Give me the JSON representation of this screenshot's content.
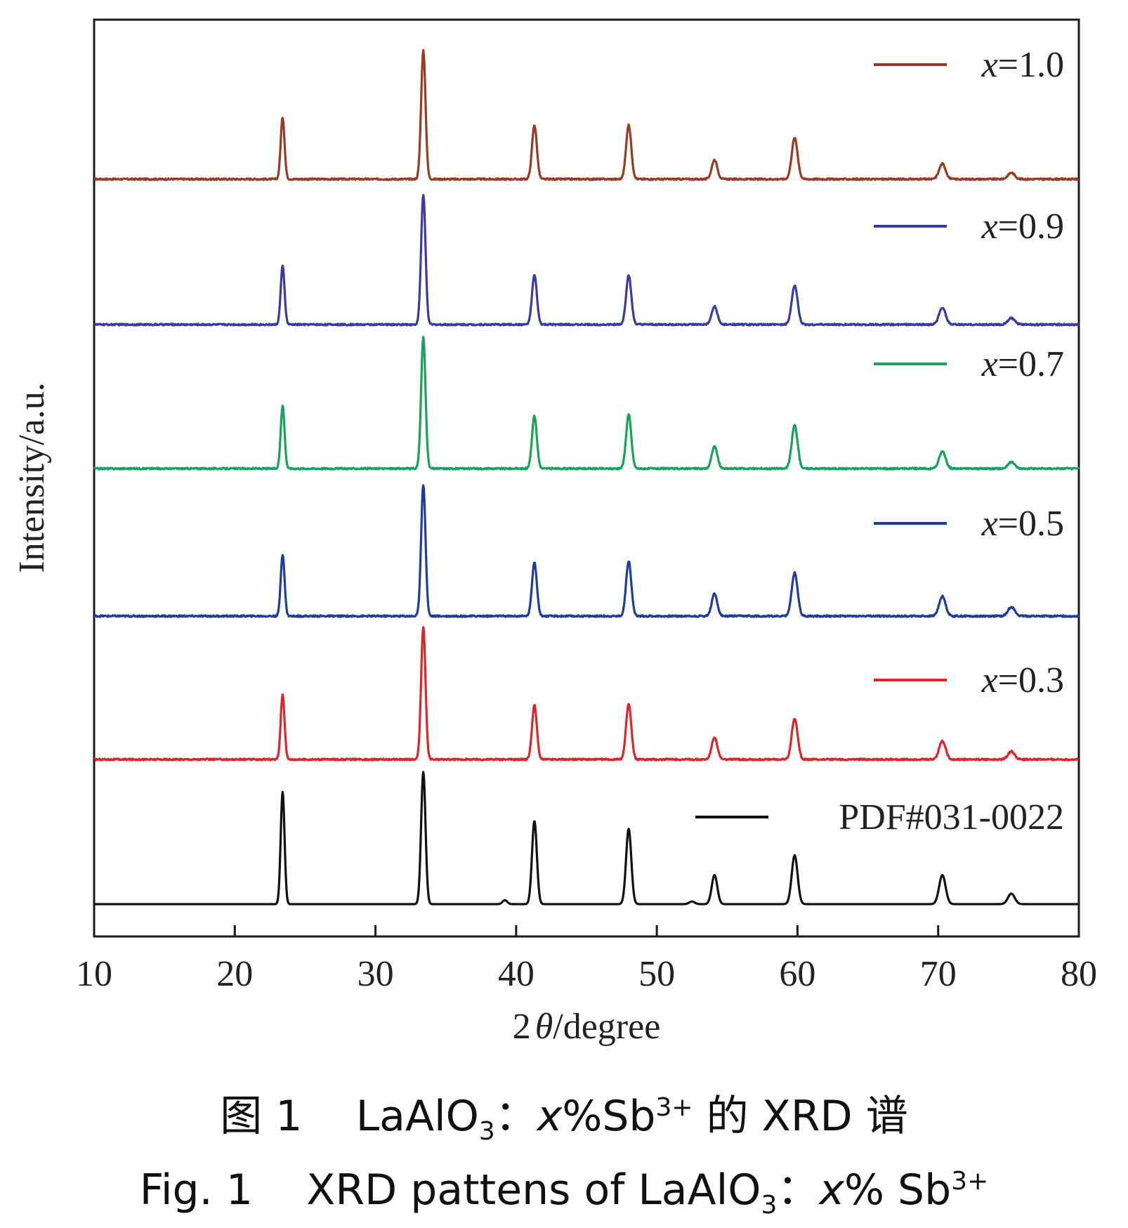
{
  "chart_data": {
    "type": "line",
    "title": "",
    "xlabel_prefix": "2",
    "xlabel_symbol": "θ",
    "xlabel_suffix": "/degree",
    "ylabel": "Intensity/a.u.",
    "xlim": [
      10,
      80
    ],
    "xticks": [
      10,
      20,
      30,
      40,
      50,
      60,
      70,
      80
    ],
    "yticks_shown": false,
    "legend_placement": "right, beside each curve",
    "series": [
      {
        "name": "x=1.0",
        "legend_var": "x",
        "legend_value": "=1.0",
        "color": "#9b3a22",
        "peaks": [
          [
            23.4,
            0.48
          ],
          [
            33.4,
            1.0
          ],
          [
            41.3,
            0.42
          ],
          [
            48.0,
            0.42
          ],
          [
            54.1,
            0.15
          ],
          [
            59.8,
            0.32
          ],
          [
            70.3,
            0.12
          ],
          [
            75.2,
            0.05
          ]
        ]
      },
      {
        "name": "x=0.9",
        "legend_var": "x",
        "legend_value": "=0.9",
        "color": "#3a3aa6",
        "peaks": [
          [
            23.4,
            0.45
          ],
          [
            33.4,
            1.0
          ],
          [
            41.3,
            0.38
          ],
          [
            48.0,
            0.38
          ],
          [
            54.1,
            0.14
          ],
          [
            59.8,
            0.3
          ],
          [
            70.3,
            0.13
          ],
          [
            75.2,
            0.05
          ]
        ]
      },
      {
        "name": "x=0.7",
        "legend_var": "x",
        "legend_value": "=0.7",
        "color": "#16a35a",
        "peaks": [
          [
            23.4,
            0.48
          ],
          [
            33.4,
            1.0
          ],
          [
            41.3,
            0.4
          ],
          [
            48.0,
            0.41
          ],
          [
            54.1,
            0.17
          ],
          [
            59.8,
            0.33
          ],
          [
            70.3,
            0.13
          ],
          [
            75.2,
            0.05
          ]
        ]
      },
      {
        "name": "x=0.5",
        "legend_var": "x",
        "legend_value": "=0.5",
        "color": "#1f3c9e",
        "peaks": [
          [
            23.4,
            0.47
          ],
          [
            33.4,
            1.0
          ],
          [
            41.3,
            0.41
          ],
          [
            48.0,
            0.42
          ],
          [
            54.1,
            0.17
          ],
          [
            59.8,
            0.33
          ],
          [
            70.3,
            0.15
          ],
          [
            75.2,
            0.07
          ]
        ]
      },
      {
        "name": "x=0.3",
        "legend_var": "x",
        "legend_value": "=0.3",
        "color": "#e0242c",
        "peaks": [
          [
            23.4,
            0.49
          ],
          [
            33.4,
            1.0
          ],
          [
            41.3,
            0.41
          ],
          [
            48.0,
            0.42
          ],
          [
            54.1,
            0.17
          ],
          [
            59.8,
            0.31
          ],
          [
            70.3,
            0.14
          ],
          [
            75.2,
            0.06
          ]
        ]
      },
      {
        "name": "PDF#031-0022",
        "legend_var": "",
        "legend_value": "PDF#031-0022",
        "color": "#111111",
        "peaks": [
          [
            23.4,
            0.85
          ],
          [
            33.4,
            1.0
          ],
          [
            39.2,
            0.03
          ],
          [
            41.3,
            0.63
          ],
          [
            48.0,
            0.57
          ],
          [
            52.5,
            0.02
          ],
          [
            54.1,
            0.22
          ],
          [
            59.8,
            0.37
          ],
          [
            70.3,
            0.22
          ],
          [
            75.2,
            0.08
          ]
        ]
      }
    ]
  },
  "caption_cn": {
    "prefix": "图 1",
    "formula": "LaAlO",
    "sub": "3",
    "colon": "：",
    "var": "x",
    "middle": "%Sb",
    "sup": "3+",
    "suffix": " 的 XRD 谱"
  },
  "caption_en": {
    "prefix": "Fig. 1",
    "text": "XRD pattens of LaAlO",
    "sub": "3",
    "colon": "：",
    "var": "x",
    "middle": "% Sb",
    "sup": "3+"
  }
}
